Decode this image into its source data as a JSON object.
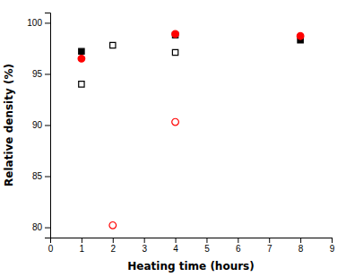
{
  "chart_data": {
    "type": "scatter",
    "xlabel": "Heating time (hours)",
    "ylabel": "Relative density (%)",
    "series": [
      {
        "color": "black",
        "marker": "square",
        "x": [
          1,
          4,
          8
        ],
        "values": [
          97.2,
          98.8,
          98.3
        ]
      },
      {
        "color": "red",
        "marker": "circle",
        "x": [
          1,
          4,
          8
        ],
        "values": [
          96.5,
          98.9,
          98.7
        ]
      },
      {
        "color": "black",
        "marker": "square-open",
        "x": [
          1,
          2,
          4
        ],
        "values": [
          94.0,
          97.8,
          97.1
        ]
      },
      {
        "color": "red",
        "marker": "circle-open",
        "x": [
          2,
          4
        ],
        "values": [
          80.2,
          90.3
        ]
      }
    ],
    "xlim": [
      0,
      9
    ],
    "ylim": [
      79,
      101
    ],
    "xticks": [
      0,
      1,
      2,
      3,
      4,
      5,
      6,
      7,
      8,
      9
    ],
    "yticks": [
      80,
      85,
      90,
      95,
      100
    ],
    "grid": false
  }
}
